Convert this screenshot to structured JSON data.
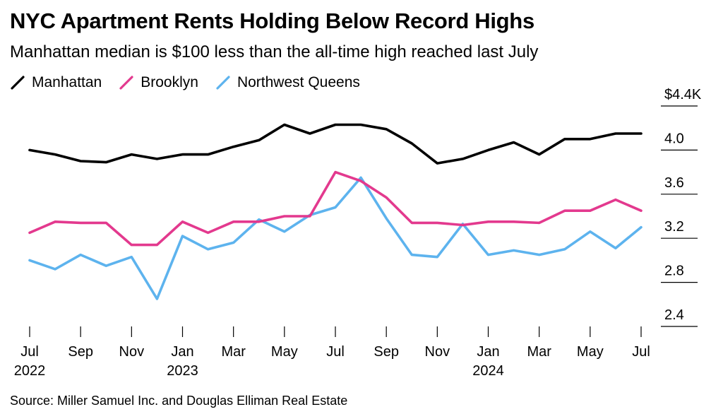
{
  "chart_data": {
    "type": "line",
    "title": "NYC Apartment Rents Holding Below Record Highs",
    "subtitle": "Manhattan median is $100 less than the all-time high reached last July",
    "source": "Source: Miller Samuel Inc. and Douglas Elliman Real Estate",
    "x": [
      "Jul 2022",
      "Aug 2022",
      "Sep 2022",
      "Oct 2022",
      "Nov 2022",
      "Dec 2022",
      "Jan 2023",
      "Feb 2023",
      "Mar 2023",
      "Apr 2023",
      "May 2023",
      "Jun 2023",
      "Jul 2023",
      "Aug 2023",
      "Sep 2023",
      "Oct 2023",
      "Nov 2023",
      "Dec 2023",
      "Jan 2024",
      "Feb 2024",
      "Mar 2024",
      "Apr 2024",
      "May 2024",
      "Jun 2024",
      "Jul 2024"
    ],
    "series": [
      {
        "name": "Manhattan",
        "color": "#000000",
        "values": [
          4.0,
          3.96,
          3.9,
          3.89,
          3.96,
          3.92,
          3.96,
          3.96,
          4.03,
          4.09,
          4.23,
          4.15,
          4.23,
          4.23,
          4.19,
          4.06,
          3.88,
          3.92,
          4.0,
          4.07,
          3.96,
          4.1,
          4.1,
          4.15,
          4.15
        ]
      },
      {
        "name": "Brooklyn",
        "color": "#e3398e",
        "values": [
          3.25,
          3.35,
          3.34,
          3.34,
          3.14,
          3.14,
          3.35,
          3.25,
          3.35,
          3.35,
          3.4,
          3.4,
          3.8,
          3.72,
          3.57,
          3.34,
          3.34,
          3.32,
          3.35,
          3.35,
          3.34,
          3.45,
          3.45,
          3.55,
          3.45
        ]
      },
      {
        "name": "Northwest Queens",
        "color": "#5db3ee",
        "values": [
          3.0,
          2.92,
          3.05,
          2.95,
          3.03,
          2.65,
          3.22,
          3.1,
          3.16,
          3.37,
          3.26,
          3.41,
          3.48,
          3.75,
          3.38,
          3.05,
          3.03,
          3.33,
          3.05,
          3.09,
          3.05,
          3.1,
          3.26,
          3.11,
          3.3
        ]
      }
    ],
    "legend": [
      "Manhattan",
      "Brooklyn",
      "Northwest Queens"
    ],
    "legend_position": "top-left",
    "ylim": [
      2.4,
      4.4
    ],
    "y_ticks": [
      {
        "value": 4.4,
        "label": "$4.4K"
      },
      {
        "value": 4.0,
        "label": "4.0"
      },
      {
        "value": 3.6,
        "label": "3.6"
      },
      {
        "value": 3.2,
        "label": "3.2"
      },
      {
        "value": 2.8,
        "label": "2.8"
      },
      {
        "value": 2.4,
        "label": "2.4"
      }
    ],
    "x_ticks": [
      {
        "index": 0,
        "label": "Jul",
        "year": "2022"
      },
      {
        "index": 2,
        "label": "Sep",
        "year": ""
      },
      {
        "index": 4,
        "label": "Nov",
        "year": ""
      },
      {
        "index": 6,
        "label": "Jan",
        "year": "2023"
      },
      {
        "index": 8,
        "label": "Mar",
        "year": ""
      },
      {
        "index": 10,
        "label": "May",
        "year": ""
      },
      {
        "index": 12,
        "label": "Jul",
        "year": ""
      },
      {
        "index": 14,
        "label": "Sep",
        "year": ""
      },
      {
        "index": 16,
        "label": "Nov",
        "year": ""
      },
      {
        "index": 18,
        "label": "Jan",
        "year": "2024"
      },
      {
        "index": 20,
        "label": "Mar",
        "year": ""
      },
      {
        "index": 22,
        "label": "May",
        "year": ""
      },
      {
        "index": 24,
        "label": "Jul",
        "year": ""
      }
    ],
    "grid": false
  }
}
